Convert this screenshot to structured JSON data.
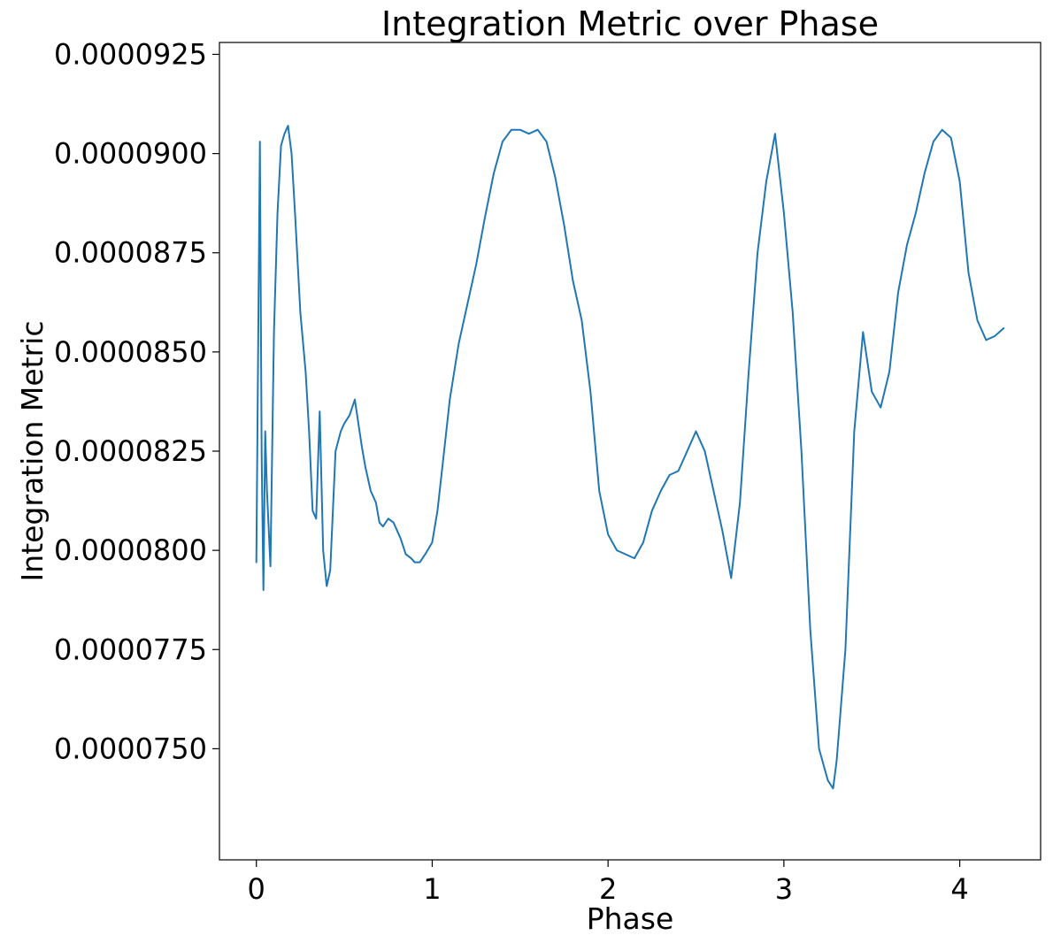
{
  "chart_data": {
    "type": "line",
    "title": "Integration Metric over Phase",
    "xlabel": "Phase",
    "ylabel": "Integration Metric",
    "xlim": [
      -0.21,
      4.46
    ],
    "ylim": [
      7.22e-05,
      9.28e-05
    ],
    "xticks": [
      0,
      1,
      2,
      3,
      4
    ],
    "xtick_labels": [
      "0",
      "1",
      "2",
      "3",
      "4"
    ],
    "yticks": [
      7.5e-05,
      7.75e-05,
      8e-05,
      8.25e-05,
      8.5e-05,
      8.75e-05,
      9e-05,
      9.25e-05
    ],
    "ytick_labels": [
      "0.0000750",
      "0.0000775",
      "0.0000800",
      "0.0000825",
      "0.0000850",
      "0.0000875",
      "0.0000900",
      "0.0000925"
    ],
    "grid": false,
    "legend": "none",
    "color": "#1f77b4",
    "series": [
      {
        "x": [
          0.0,
          0.02,
          0.03,
          0.04,
          0.05,
          0.06,
          0.08,
          0.1,
          0.12,
          0.14,
          0.16,
          0.18,
          0.2,
          0.22,
          0.25,
          0.28,
          0.3,
          0.32,
          0.34,
          0.36,
          0.38,
          0.4,
          0.42,
          0.45,
          0.48,
          0.5,
          0.53,
          0.56,
          0.58,
          0.6,
          0.62,
          0.65,
          0.68,
          0.7,
          0.72,
          0.75,
          0.78,
          0.82,
          0.85,
          0.88,
          0.9,
          0.93,
          0.96,
          1.0,
          1.03,
          1.06,
          1.1,
          1.15,
          1.2,
          1.25,
          1.3,
          1.35,
          1.4,
          1.45,
          1.5,
          1.55,
          1.6,
          1.65,
          1.7,
          1.75,
          1.8,
          1.85,
          1.9,
          1.95,
          2.0,
          2.05,
          2.1,
          2.15,
          2.2,
          2.25,
          2.3,
          2.35,
          2.4,
          2.45,
          2.5,
          2.55,
          2.6,
          2.65,
          2.7,
          2.75,
          2.8,
          2.85,
          2.9,
          2.95,
          3.0,
          3.05,
          3.1,
          3.15,
          3.2,
          3.25,
          3.28,
          3.3,
          3.35,
          3.4,
          3.45,
          3.5,
          3.55,
          3.6,
          3.65,
          3.7,
          3.75,
          3.8,
          3.85,
          3.9,
          3.95,
          4.0,
          4.05,
          4.1,
          4.15,
          4.2,
          4.25
        ],
        "y": [
          7.97e-05,
          9.03e-05,
          8.24e-05,
          7.9e-05,
          8.3e-05,
          8.15e-05,
          7.96e-05,
          8.55e-05,
          8.85e-05,
          9.02e-05,
          9.05e-05,
          9.07e-05,
          9e-05,
          8.85e-05,
          8.6e-05,
          8.45e-05,
          8.3e-05,
          8.1e-05,
          8.08e-05,
          8.35e-05,
          8e-05,
          7.91e-05,
          7.95e-05,
          8.25e-05,
          8.3e-05,
          8.32e-05,
          8.34e-05,
          8.38e-05,
          8.32e-05,
          8.26e-05,
          8.21e-05,
          8.15e-05,
          8.12e-05,
          8.07e-05,
          8.06e-05,
          8.08e-05,
          8.07e-05,
          8.03e-05,
          7.99e-05,
          7.98e-05,
          7.97e-05,
          7.97e-05,
          7.99e-05,
          8.02e-05,
          8.1e-05,
          8.22e-05,
          8.38e-05,
          8.52e-05,
          8.62e-05,
          8.72e-05,
          8.84e-05,
          8.95e-05,
          9.03e-05,
          9.06e-05,
          9.06e-05,
          9.05e-05,
          9.06e-05,
          9.03e-05,
          8.94e-05,
          8.82e-05,
          8.68e-05,
          8.58e-05,
          8.4e-05,
          8.15e-05,
          8.04e-05,
          8e-05,
          7.99e-05,
          7.98e-05,
          8.02e-05,
          8.1e-05,
          8.15e-05,
          8.19e-05,
          8.2e-05,
          8.25e-05,
          8.3e-05,
          8.25e-05,
          8.15e-05,
          8.05e-05,
          7.93e-05,
          8.12e-05,
          8.45e-05,
          8.75e-05,
          8.93e-05,
          9.05e-05,
          8.85e-05,
          8.6e-05,
          8.25e-05,
          7.8e-05,
          7.5e-05,
          7.42e-05,
          7.4e-05,
          7.47e-05,
          7.75e-05,
          8.3e-05,
          8.55e-05,
          8.4e-05,
          8.36e-05,
          8.45e-05,
          8.65e-05,
          8.77e-05,
          8.85e-05,
          8.95e-05,
          9.03e-05,
          9.06e-05,
          9.04e-05,
          8.93e-05,
          8.7e-05,
          8.58e-05,
          8.53e-05,
          8.54e-05,
          8.56e-05
        ]
      }
    ]
  }
}
